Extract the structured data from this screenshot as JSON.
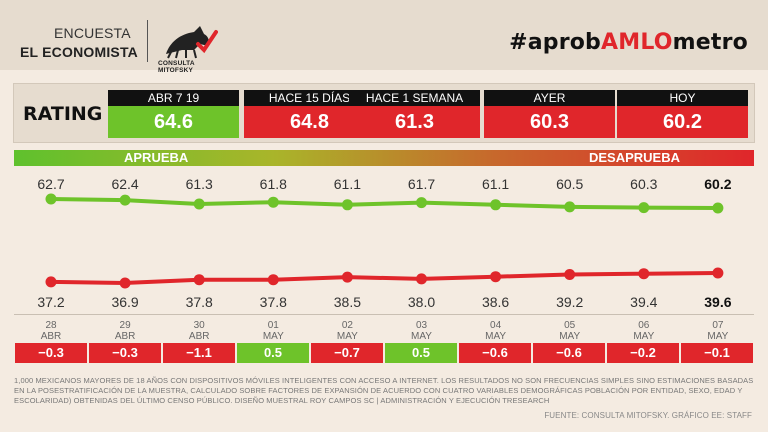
{
  "header": {
    "brand_line1": "ENCUESTA",
    "brand_line2": "EL ECONOMISTA",
    "logo_text": "CONSULTA MITOFSKY",
    "hashtag_prefix": "#aprob",
    "hashtag_highlight": "AMLO",
    "hashtag_suffix": "metro"
  },
  "rating": {
    "label": "RATING",
    "cards": [
      {
        "head": "ABR 7 19",
        "value": "64.6",
        "color": "green"
      },
      {
        "head": "HACE 15 DÍAS",
        "value": "64.8",
        "color": "red"
      },
      {
        "head": "HACE 1 SEMANA",
        "value": "61.3",
        "color": "red"
      },
      {
        "head": "AYER",
        "value": "60.3",
        "color": "red"
      },
      {
        "head": "HOY",
        "value": "60.2",
        "color": "red"
      }
    ]
  },
  "legend": {
    "approve": "APRUEBA",
    "disapprove": "DESAPRUEBA"
  },
  "colors": {
    "approve": "#6ec32a",
    "disapprove": "#e0262b"
  },
  "chart_data": {
    "type": "line",
    "categories": [
      {
        "day": "28",
        "month": "ABR"
      },
      {
        "day": "29",
        "month": "ABR"
      },
      {
        "day": "30",
        "month": "ABR"
      },
      {
        "day": "01",
        "month": "MAY"
      },
      {
        "day": "02",
        "month": "MAY"
      },
      {
        "day": "03",
        "month": "MAY"
      },
      {
        "day": "04",
        "month": "MAY"
      },
      {
        "day": "05",
        "month": "MAY"
      },
      {
        "day": "06",
        "month": "MAY"
      },
      {
        "day": "07",
        "month": "MAY"
      }
    ],
    "series": [
      {
        "name": "APRUEBA",
        "values": [
          62.7,
          62.4,
          61.3,
          61.8,
          61.1,
          61.7,
          61.1,
          60.5,
          60.3,
          60.2
        ]
      },
      {
        "name": "DESAPRUEBA",
        "values": [
          37.2,
          36.9,
          37.8,
          37.8,
          38.5,
          38.0,
          38.6,
          39.2,
          39.4,
          39.6
        ]
      }
    ],
    "value_labels": {
      "approve": [
        "62.7",
        "62.4",
        "61.3",
        "61.8",
        "61.1",
        "61.7",
        "61.1",
        "60.5",
        "60.3",
        "60.2"
      ],
      "disapprove": [
        "37.2",
        "36.9",
        "37.8",
        "37.8",
        "38.5",
        "38.0",
        "38.6",
        "39.2",
        "39.4",
        "39.6"
      ]
    },
    "changes": [
      {
        "value": "−0.3",
        "color": "red"
      },
      {
        "value": "−0.3",
        "color": "red"
      },
      {
        "value": "−1.1",
        "color": "red"
      },
      {
        "value": "0.5",
        "color": "green"
      },
      {
        "value": "−0.7",
        "color": "red"
      },
      {
        "value": "0.5",
        "color": "green"
      },
      {
        "value": "−0.6",
        "color": "red"
      },
      {
        "value": "−0.6",
        "color": "red"
      },
      {
        "value": "−0.2",
        "color": "red"
      },
      {
        "value": "−0.1",
        "color": "red"
      }
    ]
  },
  "footnote": "1,000 MEXICANOS MAYORES DE 18 AÑOS CON DISPOSITIVOS MÓVILES INTELIGENTES CON ACCESO A INTERNET. LOS RESULTADOS NO SON FRECUENCIAS SIMPLES SINO ESTIMACIONES BASADAS EN LA POSESTRATIFICACIÓN DE LA MUESTRA, CALCULADO SOBRE FACTORES DE EXPANSIÓN DE ACUERDO CON CUATRO VARIABLES DEMOGRÁFICAS POBLACIÓN POR ENTIDAD, SEXO, EDAD Y ESCOLARIDAD) OBTENIDAS DEL ÚLTIMO CENSO PÚBLICO. DISEÑO MUESTRAL ROY CAMPOS SC | ADMINISTRACIÓN Y EJECUCIÓN TRESEARCH",
  "source": "FUENTE: CONSULTA MITOFSKY. GRÁFICO EE: STAFF"
}
